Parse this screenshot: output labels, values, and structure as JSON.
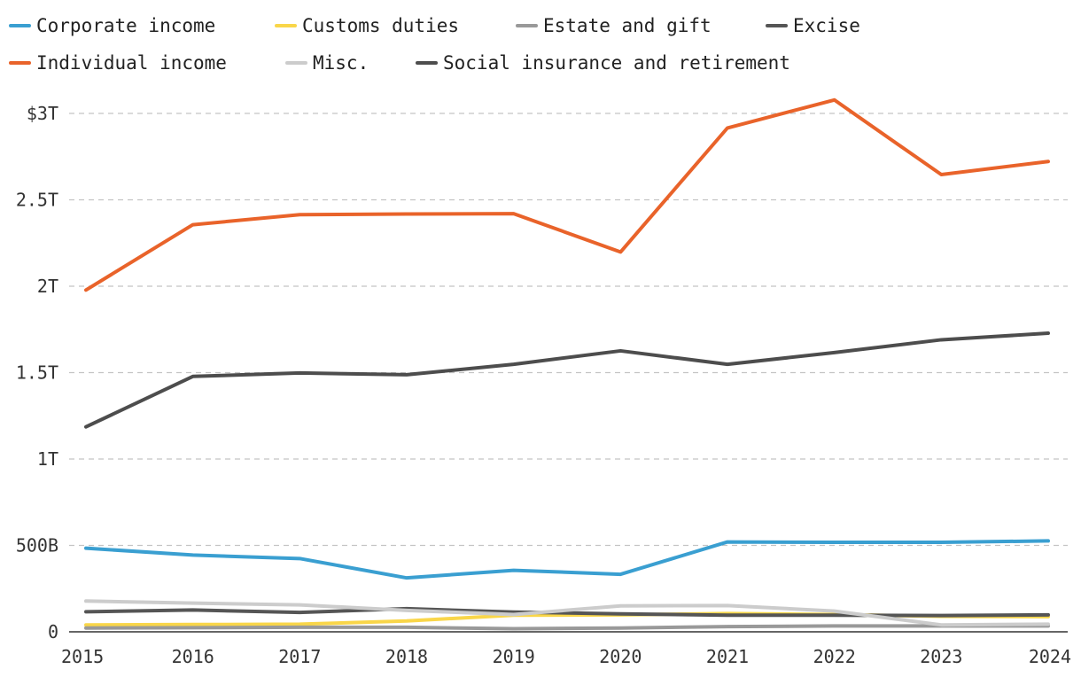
{
  "chart_data": {
    "type": "line",
    "title": "",
    "xlabel": "",
    "ylabel": "",
    "x": [
      2015,
      2016,
      2017,
      2018,
      2019,
      2020,
      2021,
      2022,
      2023,
      2024
    ],
    "x_tick_labels": [
      "2015",
      "2016",
      "2017",
      "2018",
      "2019",
      "2020",
      "2021",
      "2022",
      "2023",
      "2024"
    ],
    "ylim": [
      0,
      3000
    ],
    "y_ticks": [
      {
        "value": 0,
        "label": "0"
      },
      {
        "value": 500,
        "label": "500B"
      },
      {
        "value": 1000,
        "label": "1T"
      },
      {
        "value": 1500,
        "label": "1.5T"
      },
      {
        "value": 2000,
        "label": "2T"
      },
      {
        "value": 2500,
        "label": "2.5T"
      },
      {
        "value": 3000,
        "label": "$3T"
      }
    ],
    "grid": true,
    "legend_position": "top",
    "series": [
      {
        "name": "Corporate income",
        "color": "#3a9fd1",
        "values": [
          484,
          444,
          424,
          312,
          356,
          333,
          520,
          518,
          518,
          526
        ]
      },
      {
        "name": "Customs duties",
        "color": "#f9d649",
        "values": [
          40,
          42,
          44,
          63,
          96,
          98,
          106,
          100,
          90,
          88
        ]
      },
      {
        "name": "Estate and gift",
        "color": "#999999",
        "values": [
          22,
          24,
          26,
          26,
          18,
          22,
          30,
          34,
          34,
          34
        ]
      },
      {
        "name": "Excise",
        "color": "#555555",
        "values": [
          116,
          126,
          112,
          134,
          114,
          104,
          96,
          96,
          94,
          98
        ]
      },
      {
        "name": "Individual income",
        "color": "#e9632a",
        "values": [
          1978,
          2356,
          2414,
          2418,
          2420,
          2198,
          2916,
          3078,
          2646,
          2722
        ]
      },
      {
        "name": "Misc.",
        "color": "#cccccc",
        "values": [
          178,
          166,
          156,
          124,
          100,
          150,
          152,
          120,
          40,
          44
        ]
      },
      {
        "name": "Social insurance and retirement",
        "color": "#4d4d4d",
        "values": [
          1186,
          1478,
          1498,
          1488,
          1548,
          1626,
          1548,
          1616,
          1690,
          1728
        ]
      }
    ]
  }
}
